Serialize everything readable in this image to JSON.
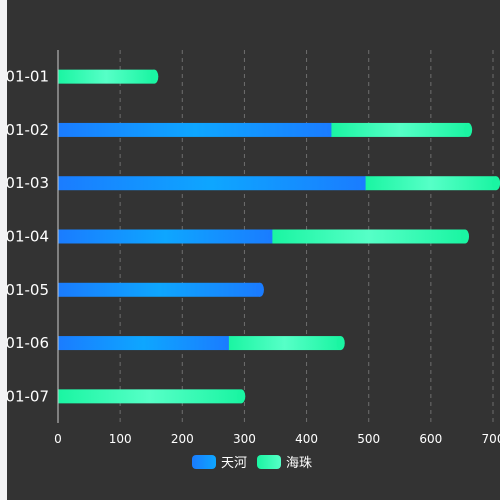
{
  "chart_data": {
    "type": "bar",
    "orientation": "horizontal",
    "stacked": true,
    "categories": [
      "01-01",
      "01-02",
      "01-03",
      "01-04",
      "01-05",
      "01-06",
      "01-07"
    ],
    "series": [
      {
        "name": "天河",
        "values": [
          0,
          440,
          495,
          345,
          325,
          275,
          0
        ],
        "color_start": "#1a7cff",
        "color_end": "#0ea6ff"
      },
      {
        "name": "海珠",
        "values": [
          155,
          220,
          210,
          310,
          0,
          180,
          295
        ],
        "color_start": "#1af5a2",
        "color_end": "#56ffc7"
      }
    ],
    "xlim": [
      0,
      700
    ],
    "xticks": [
      0,
      100,
      200,
      300,
      400,
      500,
      600,
      700
    ],
    "grid": true,
    "legend_position": "bottom"
  }
}
